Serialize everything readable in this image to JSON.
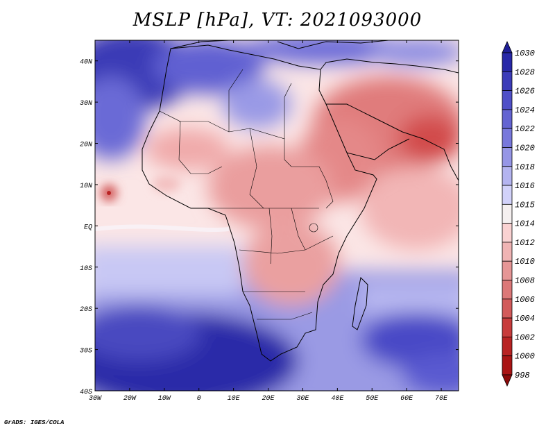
{
  "figure": {
    "title": "MSLP [hPa], VT: 2021093000",
    "credit": "GrADS: IGES/COLA"
  },
  "map": {
    "region": "Africa and Middle East",
    "lon_range": [
      -30,
      75
    ],
    "lat_range": [
      -40,
      45
    ],
    "lon_ticks": [
      "30W",
      "20W",
      "10W",
      "0",
      "10E",
      "20E",
      "30E",
      "40E",
      "50E",
      "60E",
      "70E"
    ],
    "lat_ticks": [
      "40N",
      "30N",
      "20N",
      "10N",
      "EQ",
      "10S",
      "20S",
      "30S",
      "40S"
    ]
  },
  "colorbar": {
    "levels": [
      "1030",
      "1028",
      "1026",
      "1024",
      "1022",
      "1020",
      "1018",
      "1016",
      "1015",
      "1014",
      "1012",
      "1010",
      "1008",
      "1006",
      "1004",
      "1002",
      "1000",
      "998"
    ],
    "colors": [
      "#1e1e96",
      "#2828a8",
      "#3c3cb9",
      "#5050c8",
      "#6464d2",
      "#7878dc",
      "#9696e6",
      "#b4b4f0",
      "#d2d2fa",
      "#f5f0f0",
      "#fad2d2",
      "#f0b4b4",
      "#e69696",
      "#dc7878",
      "#d25a5a",
      "#c83c3c",
      "#b92323",
      "#aa1414",
      "#8c0a0a"
    ]
  }
}
